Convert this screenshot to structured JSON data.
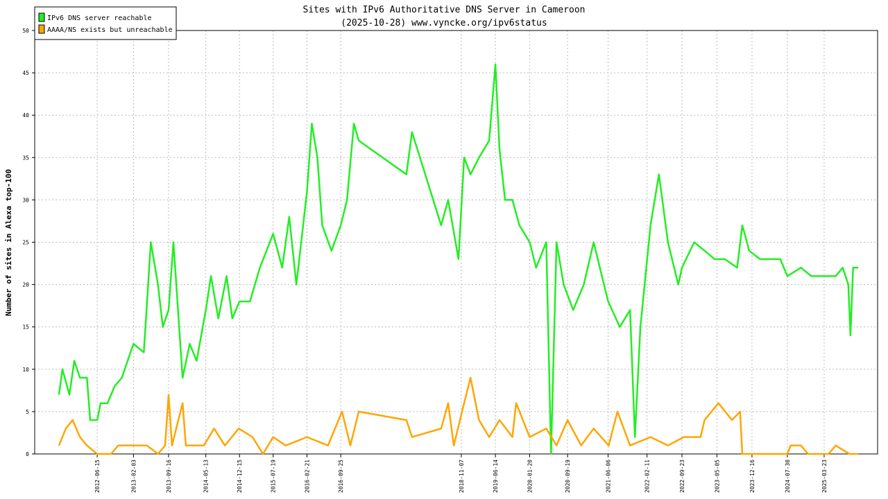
{
  "chart_data": {
    "type": "line",
    "title": "Sites with IPv6 Authoritative DNS Server in Cameroon",
    "subtitle": "(2025-10-28) www.vyncke.org/ipv6status",
    "y_label": "Number of sites in Alexa top-100",
    "xlim": [
      "2011-05-11",
      "2026-03-01"
    ],
    "xticks": [
      "2012-06-15",
      "2013-02-03",
      "2013-09-16",
      "2014-05-13",
      "2014-12-15",
      "2015-07-19",
      "2016-02-21",
      "2016-09-25",
      "2018-11-07",
      "2019-06-14",
      "2020-01-20",
      "2020-09-19",
      "2021-06-06",
      "2022-02-11",
      "2022-09-23",
      "2023-05-05",
      "2023-12-16",
      "2024-07-30",
      "2025-03-23"
    ],
    "ylim": [
      0,
      50
    ],
    "yticks": [
      0,
      5,
      10,
      15,
      20,
      25,
      30,
      35,
      40,
      45,
      50
    ],
    "grid": true,
    "legend": "upper left",
    "series": [
      {
        "name": "IPv6 DNS server reachable",
        "color": "#22ee22",
        "x": [
          "2011-10-14",
          "2011-11-05",
          "2011-12-20",
          "2012-01-20",
          "2012-02-25",
          "2012-04-10",
          "2012-05-01",
          "2012-06-15",
          "2012-07-07",
          "2012-08-20",
          "2012-10-05",
          "2012-11-20",
          "2013-02-03",
          "2013-04-10",
          "2013-05-25",
          "2013-07-10",
          "2013-08-10",
          "2013-09-16",
          "2013-10-17",
          "2013-12-15",
          "2014-01-30",
          "2014-03-15",
          "2014-05-13",
          "2014-06-15",
          "2014-08-01",
          "2014-09-23",
          "2014-10-30",
          "2014-12-15",
          "2015-02-20",
          "2015-04-25",
          "2015-07-19",
          "2015-09-15",
          "2015-10-30",
          "2015-12-15",
          "2016-02-21",
          "2016-03-23",
          "2016-04-28",
          "2016-05-29",
          "2016-07-27",
          "2016-09-25",
          "2016-11-04",
          "2016-12-18",
          "2017-01-18",
          "2017-11-20",
          "2017-12-26",
          "2018-07-01",
          "2018-08-15",
          "2018-10-20",
          "2018-11-25",
          "2019-01-05",
          "2019-03-01",
          "2019-05-05",
          "2019-06-14",
          "2019-07-10",
          "2019-08-15",
          "2019-10-01",
          "2019-11-15",
          "2020-01-20",
          "2020-03-01",
          "2020-05-05",
          "2020-06-05",
          "2020-07-10",
          "2020-08-25",
          "2020-10-25",
          "2021-01-01",
          "2021-03-05",
          "2021-06-06",
          "2021-08-20",
          "2021-10-25",
          "2021-11-25",
          "2021-12-30",
          "2022-03-05",
          "2022-04-28",
          "2022-06-25",
          "2022-08-30",
          "2022-09-23",
          "2022-12-10",
          "2023-02-15",
          "2023-04-20",
          "2023-06-25",
          "2023-09-12",
          "2023-10-15",
          "2023-11-28",
          "2024-02-05",
          "2024-06-15",
          "2024-07-30",
          "2024-10-25",
          "2024-12-30",
          "2025-06-05",
          "2025-07-20",
          "2025-08-25",
          "2025-09-08",
          "2025-09-25",
          "2025-10-28"
        ],
        "values": [
          7,
          10,
          7,
          11,
          9,
          9,
          4,
          4,
          6,
          6,
          8,
          9,
          13,
          12,
          25,
          20,
          15,
          17,
          25,
          9,
          13,
          11,
          17,
          21,
          16,
          21,
          16,
          18,
          18,
          22,
          26,
          22,
          28,
          20,
          31,
          39,
          35,
          27,
          24,
          27,
          30,
          39,
          37,
          33,
          38,
          27,
          30,
          23,
          35,
          33,
          35,
          37,
          46,
          36,
          30,
          30,
          27,
          25,
          22,
          25,
          0,
          25,
          20,
          17,
          20,
          25,
          18,
          15,
          17,
          2,
          15,
          27,
          33,
          25,
          20,
          22,
          25,
          24,
          23,
          23,
          22,
          27,
          24,
          23,
          23,
          21,
          22,
          21,
          21,
          22,
          20,
          14,
          22,
          22
        ]
      },
      {
        "name": "AAAA/NS exists but unreachable",
        "color": "#ffa500",
        "x": [
          "2011-10-14",
          "2011-11-27",
          "2012-01-10",
          "2012-02-25",
          "2012-04-10",
          "2012-06-15",
          "2012-09-12",
          "2012-10-28",
          "2013-02-03",
          "2013-04-30",
          "2013-07-10",
          "2013-08-25",
          "2013-09-16",
          "2013-10-08",
          "2013-12-15",
          "2014-01-05",
          "2014-04-30",
          "2014-07-05",
          "2014-09-12",
          "2014-12-10",
          "2015-03-08",
          "2015-05-15",
          "2015-07-19",
          "2015-10-07",
          "2016-02-21",
          "2016-07-05",
          "2016-10-03",
          "2016-11-25",
          "2017-01-18",
          "2017-11-20",
          "2017-12-26",
          "2018-07-01",
          "2018-08-15",
          "2018-09-20",
          "2018-11-12",
          "2019-01-05",
          "2019-03-01",
          "2019-05-05",
          "2019-07-10",
          "2019-10-01",
          "2019-10-25",
          "2020-01-20",
          "2020-05-05",
          "2020-07-10",
          "2020-09-19",
          "2020-12-15",
          "2021-03-05",
          "2021-06-10",
          "2021-08-05",
          "2021-10-25",
          "2022-03-05",
          "2022-06-25",
          "2022-10-05",
          "2023-01-20",
          "2023-02-15",
          "2023-05-15",
          "2023-08-10",
          "2023-10-01",
          "2023-10-15",
          "2024-07-30",
          "2024-08-20",
          "2024-10-25",
          "2024-12-10",
          "2025-04-20",
          "2025-06-05",
          "2025-09-01",
          "2025-10-28"
        ],
        "values": [
          1,
          3,
          4,
          2,
          1,
          0,
          0,
          1,
          1,
          1,
          0,
          1,
          7,
          1,
          6,
          1,
          1,
          3,
          1,
          3,
          2,
          0,
          2,
          1,
          2,
          1,
          5,
          1,
          5,
          4,
          2,
          3,
          6,
          1,
          5,
          9,
          4,
          2,
          4,
          2,
          6,
          2,
          3,
          1,
          4,
          1,
          3,
          1,
          5,
          1,
          2,
          1,
          2,
          2,
          4,
          6,
          4,
          5,
          0,
          0,
          1,
          1,
          0,
          0,
          1,
          0,
          0
        ]
      }
    ]
  }
}
